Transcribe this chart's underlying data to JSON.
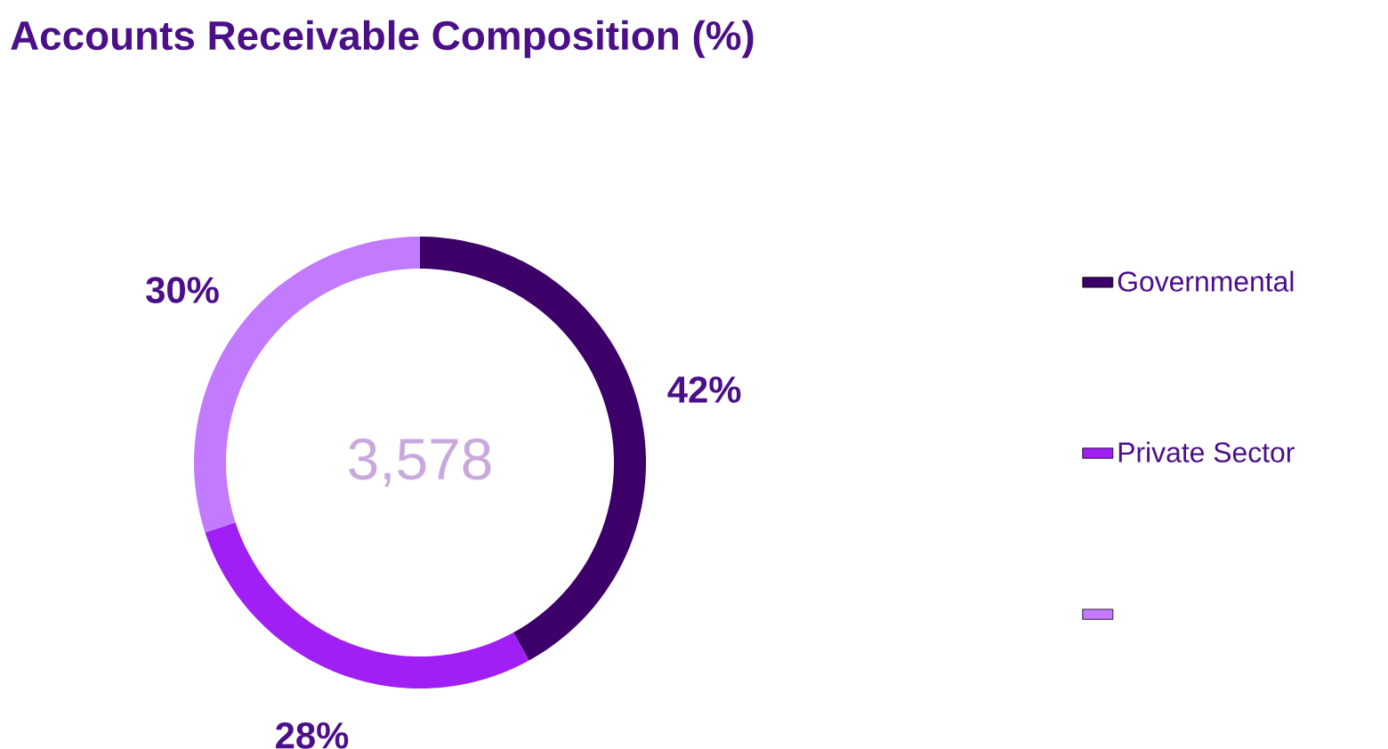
{
  "chart_data": {
    "type": "donut",
    "title": "Accounts Receivable Composition (%)",
    "categories": [
      "Governmental",
      "Private Sector",
      null
    ],
    "values": [
      42,
      28,
      30
    ],
    "value_labels": [
      "42%",
      "28%",
      "30%"
    ],
    "colors": [
      "#3d0068",
      "#a01ff5",
      "#c27aff"
    ],
    "annotations": [
      "3,578"
    ],
    "legend": "right"
  }
}
